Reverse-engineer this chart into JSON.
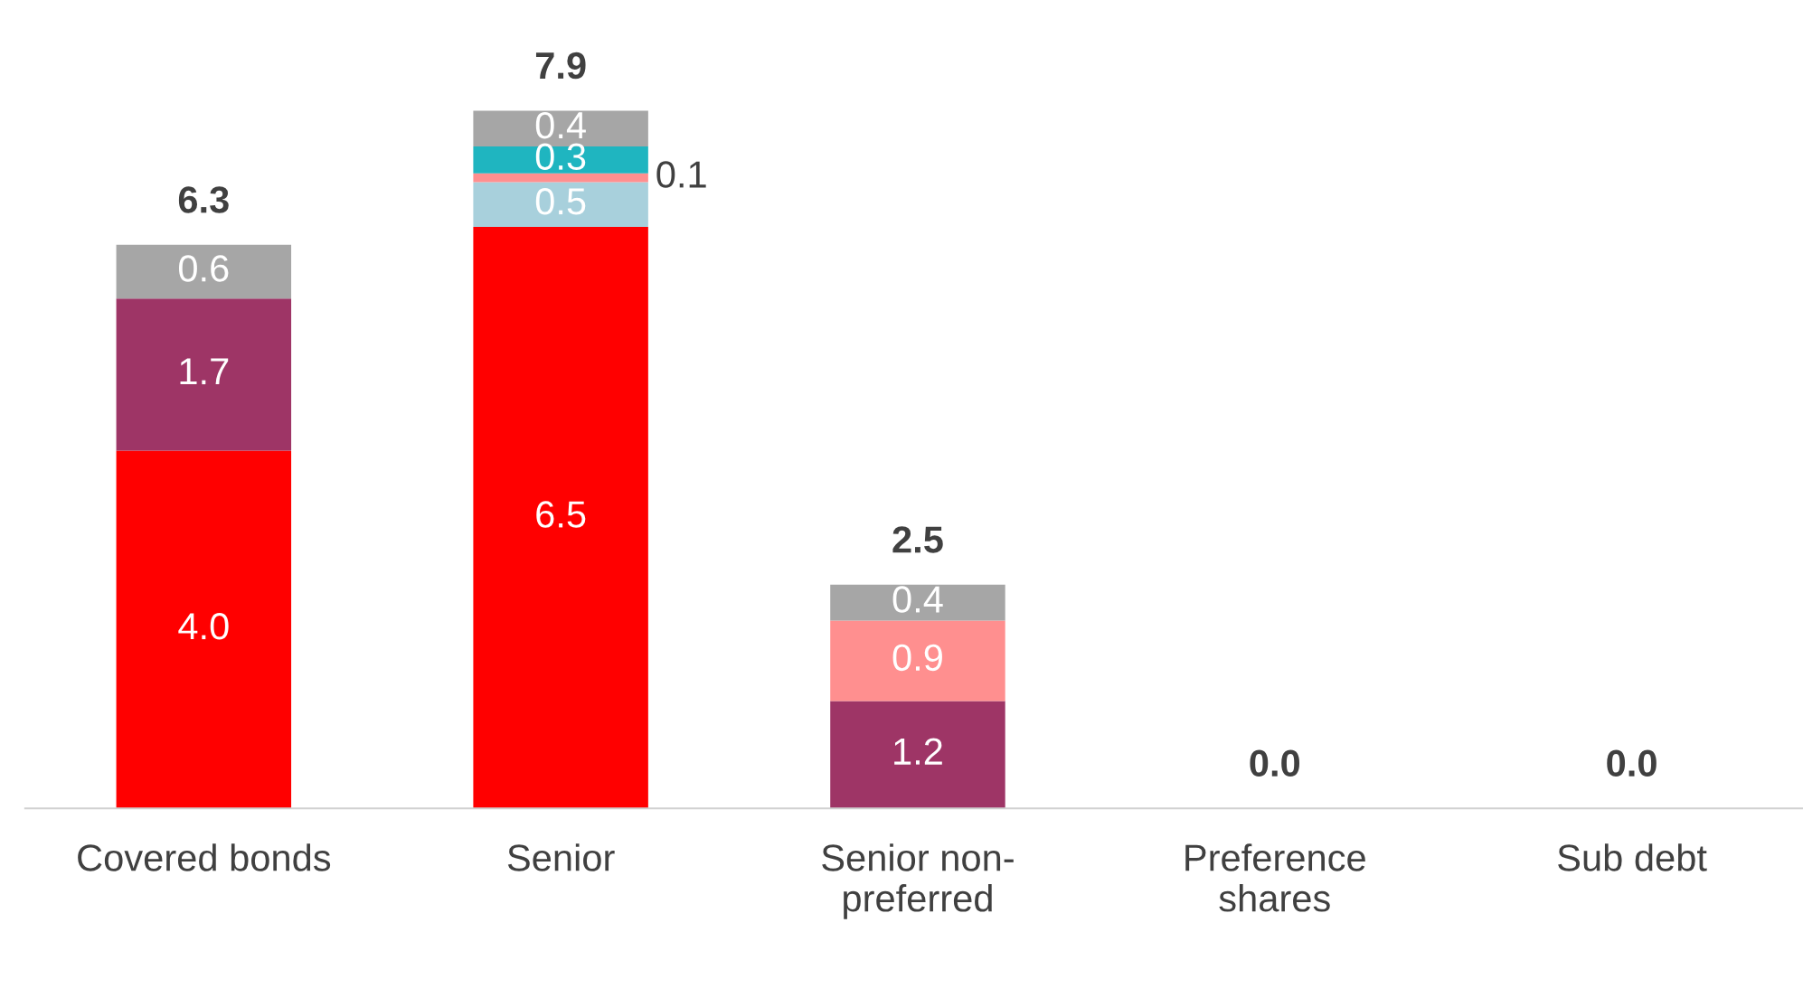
{
  "chart_data": {
    "type": "bar",
    "stacked": true,
    "categories": [
      "Covered bonds",
      "Senior",
      "Senior non-preferred",
      "Preference shares",
      "Sub debt"
    ],
    "series": [
      {
        "color": "#ff0000",
        "values": [
          4.0,
          6.5,
          0,
          0,
          0
        ],
        "value_labels": [
          "4.0",
          "6.5",
          null,
          null,
          null
        ]
      },
      {
        "color": "#9e3566",
        "values": [
          1.7,
          0,
          1.2,
          0,
          0
        ],
        "value_labels": [
          "1.7",
          null,
          "1.2",
          null,
          null
        ]
      },
      {
        "color": "#a8d0dc",
        "values": [
          0,
          0.5,
          0,
          0,
          0
        ],
        "value_labels": [
          null,
          "0.5",
          null,
          null,
          null
        ]
      },
      {
        "color": "#ff8f8f",
        "values": [
          0,
          0.1,
          0.9,
          0,
          0
        ],
        "value_labels": [
          null,
          "0.1",
          "0.9",
          null,
          null
        ]
      },
      {
        "color": "#1fb5c0",
        "values": [
          0,
          0.3,
          0,
          0,
          0
        ],
        "value_labels": [
          null,
          "0.3",
          null,
          null,
          null
        ]
      },
      {
        "color": "#a6a6a6",
        "values": [
          0.6,
          0.4,
          0.4,
          0,
          0
        ],
        "value_labels": [
          "0.6",
          "0.4",
          "0.4",
          null,
          null
        ]
      }
    ],
    "totals": [
      "6.3",
      "7.9",
      "2.5",
      "0.0",
      "0.0"
    ]
  }
}
